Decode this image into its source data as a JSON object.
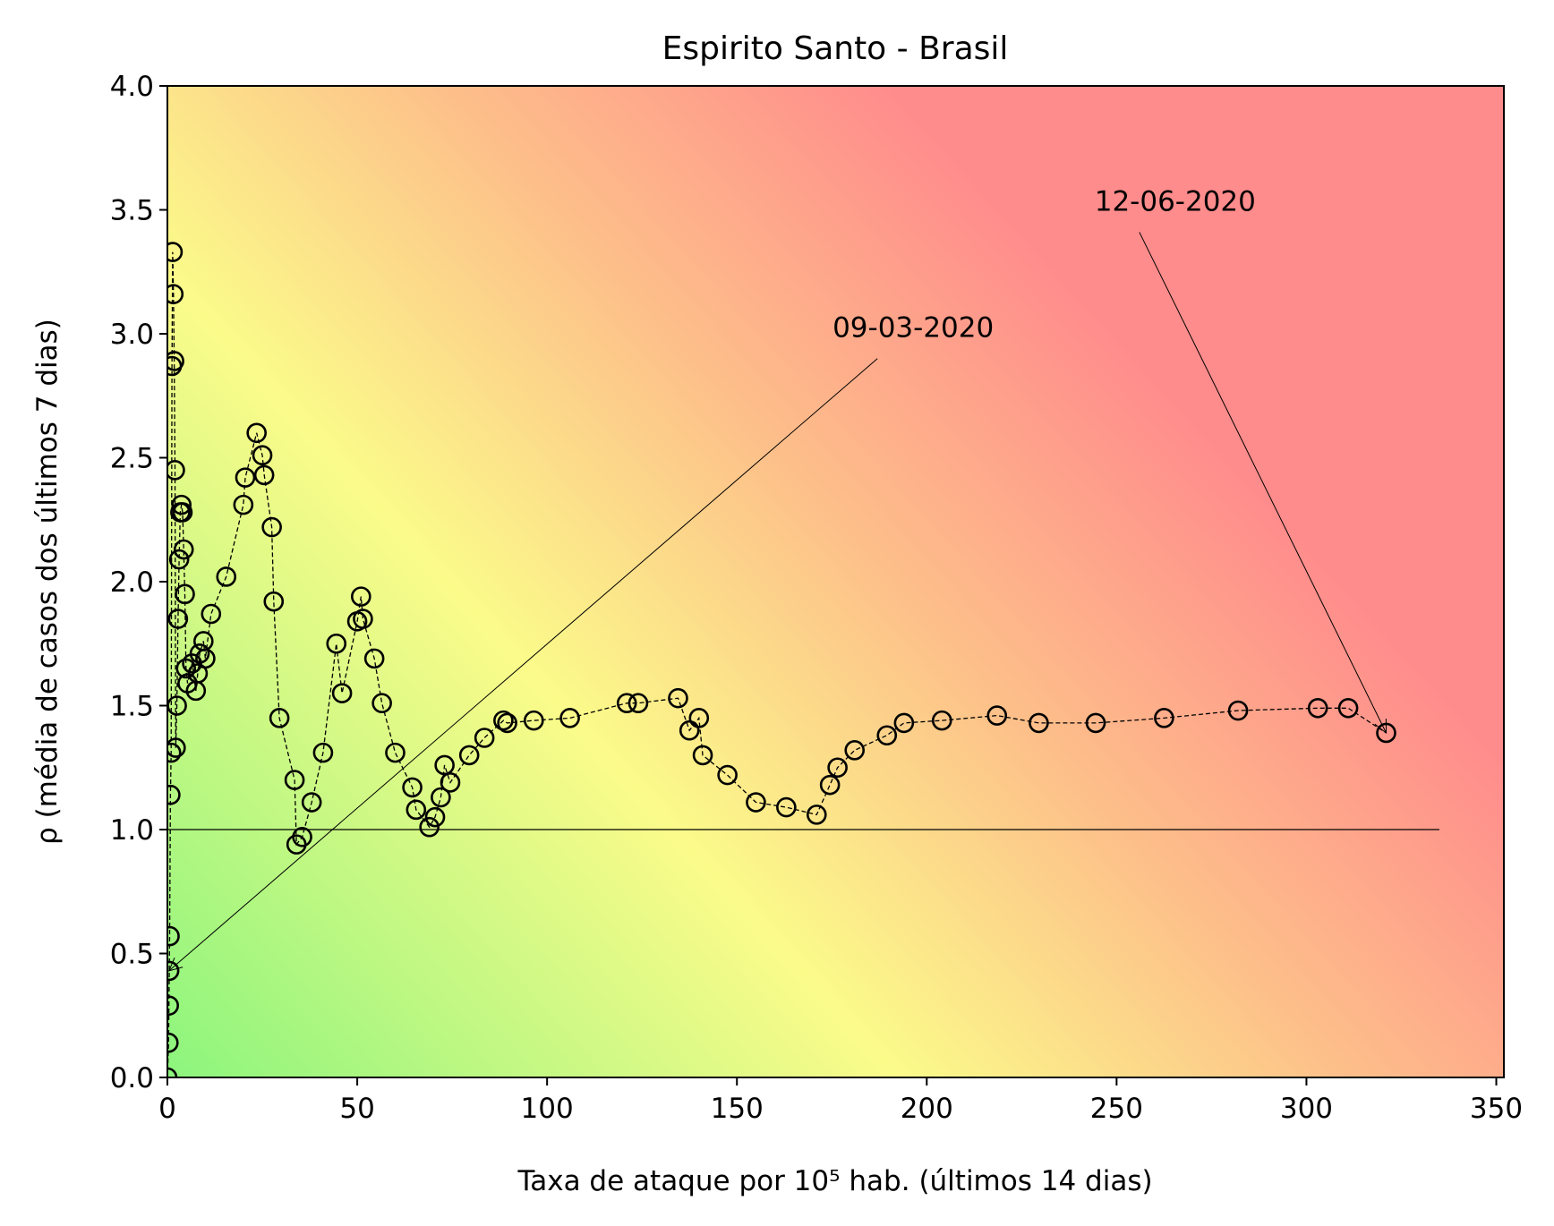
{
  "chart_data": {
    "type": "scatter",
    "title": "Espirito Santo - Brasil",
    "xlabel": "Taxa de ataque por 10⁵ hab. (últimos 14 dias)",
    "ylabel": "ρ (média de casos dos últimos 7 dias)",
    "xlim": [
      0,
      352
    ],
    "ylim": [
      0,
      4.0
    ],
    "xticks": [
      0,
      50,
      100,
      150,
      200,
      250,
      300,
      350
    ],
    "yticks": [
      0.0,
      0.5,
      1.0,
      1.5,
      2.0,
      2.5,
      3.0,
      3.5,
      4.0
    ],
    "xtick_labels": [
      "0",
      "50",
      "100",
      "150",
      "200",
      "250",
      "300",
      "350"
    ],
    "ytick_labels": [
      "0.0",
      "0.5",
      "1.0",
      "1.5",
      "2.0",
      "2.5",
      "3.0",
      "3.5",
      "4.0"
    ],
    "grid": false,
    "background": "gradient green-yellow-red by risk",
    "colors": {
      "green": "#8cf57d",
      "yellow": "#fbfb8a",
      "orange": "#fdc08a",
      "red": "#ff8c8c",
      "marker_edge": "#000000"
    },
    "reference_line": {
      "y": 1.0,
      "x_from": 0,
      "x_to": 335
    },
    "series": [
      {
        "marker": "open circle",
        "line_style": "dashed",
        "x": [
          0.0,
          0.3,
          0.4,
          0.5,
          0.6,
          0.8,
          1.0,
          1.2,
          1.4,
          1.6,
          1.8,
          2.0,
          2.2,
          2.5,
          2.8,
          3.1,
          3.4,
          3.7,
          4.0,
          4.3,
          4.6,
          4.9,
          5.3,
          6.5,
          7.5,
          8.0,
          8.5,
          9.5,
          10.0,
          11.5,
          15.5,
          20.0,
          20.5,
          23.5,
          25.0,
          25.5,
          27.5,
          28.0,
          29.5,
          33.5,
          34.0,
          35.5,
          38.0,
          41.0,
          44.5,
          46.0,
          50.0,
          51.0,
          51.5,
          54.5,
          56.5,
          60.0,
          64.5,
          65.5,
          69.0,
          70.5,
          72.0,
          73.0,
          74.5,
          79.5,
          83.5,
          88.5,
          89.5,
          96.5,
          106.0,
          121.0,
          124.0,
          134.5,
          137.5,
          140.0,
          141.0,
          147.5,
          155.0,
          163.0,
          171.0,
          174.5,
          176.5,
          181.0,
          189.5,
          194.0,
          204.0,
          218.5,
          229.5,
          244.5,
          262.5,
          282.0,
          303.0,
          311.0,
          321.0
        ],
        "y": [
          0.0,
          0.14,
          0.29,
          0.43,
          0.57,
          1.14,
          1.31,
          2.87,
          3.33,
          3.16,
          2.89,
          2.45,
          1.33,
          1.5,
          1.85,
          2.09,
          2.28,
          2.31,
          2.28,
          2.13,
          1.95,
          1.65,
          1.59,
          1.67,
          1.56,
          1.63,
          1.71,
          1.76,
          1.69,
          1.87,
          2.02,
          2.31,
          2.42,
          2.6,
          2.51,
          2.43,
          2.22,
          1.92,
          1.45,
          1.2,
          0.94,
          0.97,
          1.11,
          1.31,
          1.75,
          1.55,
          1.84,
          1.94,
          1.85,
          1.69,
          1.51,
          1.31,
          1.17,
          1.08,
          1.01,
          1.05,
          1.13,
          1.26,
          1.19,
          1.3,
          1.37,
          1.44,
          1.43,
          1.44,
          1.45,
          1.51,
          1.51,
          1.53,
          1.4,
          1.45,
          1.3,
          1.22,
          1.11,
          1.09,
          1.06,
          1.18,
          1.25,
          1.32,
          1.38,
          1.43,
          1.44,
          1.46,
          1.43,
          1.43,
          1.45,
          1.48,
          1.49,
          1.49,
          1.39
        ]
      }
    ],
    "annotations": [
      {
        "text": "09-03-2020",
        "point": [
          0.4,
          0.43
        ],
        "text_pos": [
          187,
          2.9
        ]
      },
      {
        "text": "12-06-2020",
        "point": [
          321,
          1.39
        ],
        "text_pos": [
          256,
          3.41
        ]
      }
    ]
  }
}
